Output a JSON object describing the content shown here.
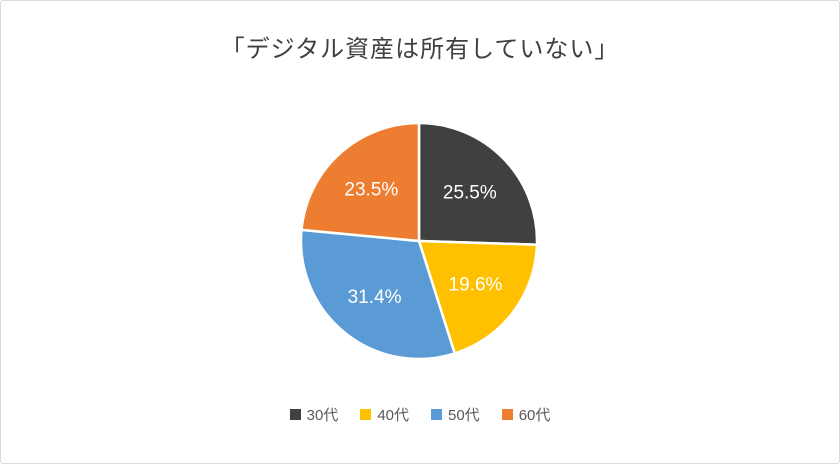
{
  "chart": {
    "title": "「デジタル資産は所有していない」"
  },
  "chart_data": {
    "type": "pie",
    "title": "「デジタル資産は所有していない」",
    "categories": [
      "30代",
      "40代",
      "50代",
      "60代"
    ],
    "values": [
      25.5,
      19.6,
      31.4,
      23.5
    ],
    "labels": [
      "25.5%",
      "19.6%",
      "31.4%",
      "23.5%"
    ],
    "colors": [
      "#404040",
      "#FFC000",
      "#5B9BD5",
      "#ED7D31"
    ],
    "start_angle_deg": 0,
    "direction": "clockwise",
    "legend_position": "bottom",
    "label_color": "#FFFFFF",
    "slice_border_color": "#FFFFFF"
  }
}
